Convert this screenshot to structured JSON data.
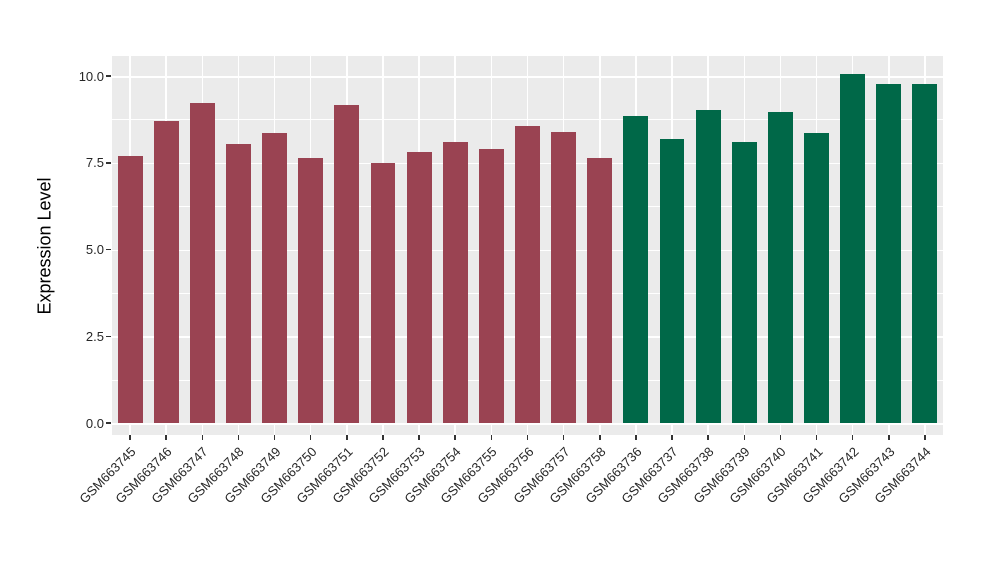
{
  "chart_data": {
    "type": "bar",
    "title": "",
    "xlabel": "",
    "ylabel": "Expression Level",
    "ylim": [
      -0.35,
      10.6
    ],
    "yticks": [
      0.0,
      2.5,
      5.0,
      7.5,
      10.0
    ],
    "ytick_labels": [
      "0.0",
      "2.5",
      "5.0",
      "7.5",
      "10.0"
    ],
    "yminor_ticks": [
      1.25,
      3.75,
      6.25,
      8.75
    ],
    "grid": "on",
    "legend": "none",
    "panel_bg": "#EBEBEB",
    "grid_color": "#FFFFFF",
    "categories": [
      "GSM663745",
      "GSM663746",
      "GSM663747",
      "GSM663748",
      "GSM663749",
      "GSM663750",
      "GSM663751",
      "GSM663752",
      "GSM663753",
      "GSM663754",
      "GSM663755",
      "GSM663756",
      "GSM663757",
      "GSM663758",
      "GSM663736",
      "GSM663737",
      "GSM663738",
      "GSM663739",
      "GSM663740",
      "GSM663741",
      "GSM663742",
      "GSM663743",
      "GSM663744"
    ],
    "values": [
      7.7,
      8.7,
      9.22,
      8.04,
      8.35,
      7.64,
      9.16,
      7.5,
      7.81,
      8.1,
      7.89,
      8.55,
      8.39,
      7.64,
      8.85,
      8.18,
      9.02,
      8.1,
      8.96,
      8.35,
      10.06,
      9.77,
      9.77
    ],
    "colors": [
      "#9A4352",
      "#9A4352",
      "#9A4352",
      "#9A4352",
      "#9A4352",
      "#9A4352",
      "#9A4352",
      "#9A4352",
      "#9A4352",
      "#9A4352",
      "#9A4352",
      "#9A4352",
      "#9A4352",
      "#9A4352",
      "#006848",
      "#006848",
      "#006848",
      "#006848",
      "#006848",
      "#006848",
      "#006848",
      "#006848",
      "#006848"
    ],
    "series_groups": [
      {
        "name": "maroon-group",
        "color": "#9A4352",
        "first_category": "GSM663745",
        "last_category": "GSM663758",
        "count": 14
      },
      {
        "name": "green-group",
        "color": "#006848",
        "first_category": "GSM663736",
        "last_category": "GSM663744",
        "count": 9
      }
    ]
  }
}
